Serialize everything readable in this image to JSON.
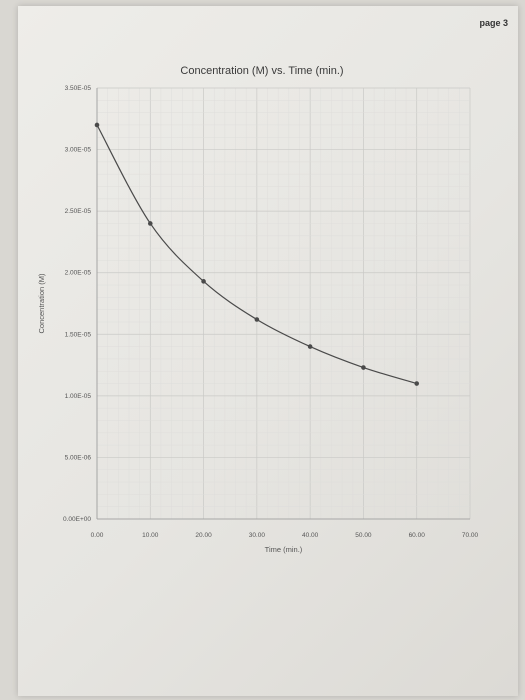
{
  "page": {
    "label": "page 3"
  },
  "chart_data": {
    "type": "line",
    "title": "Concentration (M) vs. Time (min.)",
    "xlabel": "Time (min.)",
    "ylabel": "Concentration (M)",
    "xlim": [
      0,
      70
    ],
    "ylim": [
      0,
      3.5e-05
    ],
    "x_ticks": [
      "0.00",
      "10.00",
      "20.00",
      "30.00",
      "40.00",
      "50.00",
      "60.00",
      "70.00"
    ],
    "y_ticks": [
      "0.00E+00",
      "5.00E-06",
      "1.00E-05",
      "1.50E-05",
      "2.00E-05",
      "2.50E-05",
      "3.00E-05",
      "3.50E-05"
    ],
    "grid": true,
    "legend": "none",
    "series": [
      {
        "x": [
          0,
          10,
          20,
          30,
          40,
          50,
          60
        ],
        "y": [
          3.2e-05,
          2.4e-05,
          1.93e-05,
          1.62e-05,
          1.4e-05,
          1.23e-05,
          1.1e-05
        ],
        "color": "#4a4a4a"
      }
    ]
  }
}
